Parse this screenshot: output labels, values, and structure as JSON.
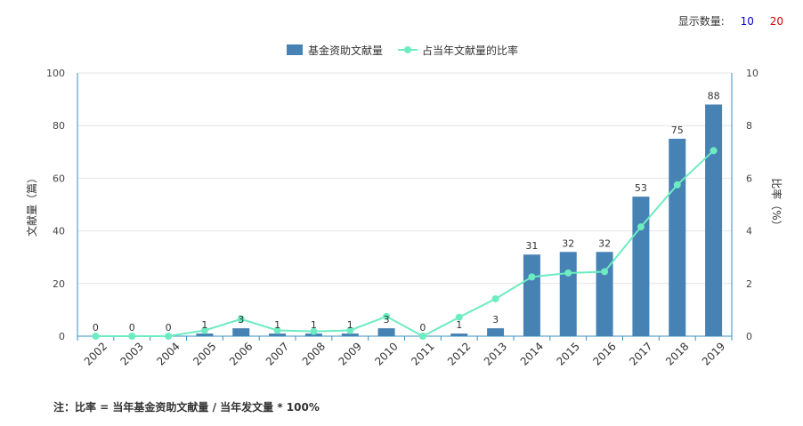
{
  "display_control": {
    "label": "显示数量:",
    "options": [
      "10",
      "20"
    ]
  },
  "note": "注：比率 = 当年基金资助文献量 / 当年发文量 * 100%",
  "colors": {
    "bar": "#4682b4",
    "line": "#6cecc0",
    "axis": "#3a8fc0",
    "grid": "#e4e4e4"
  },
  "chart_data": {
    "type": "bar",
    "categories": [
      "2002",
      "2003",
      "2004",
      "2005",
      "2006",
      "2007",
      "2008",
      "2009",
      "2010",
      "2011",
      "2012",
      "2013",
      "2014",
      "2015",
      "2016",
      "2017",
      "2018",
      "2019"
    ],
    "series": [
      {
        "name": "基金资助文献量",
        "type": "bar",
        "axis": "left",
        "values": [
          0,
          0,
          0,
          1,
          3,
          1,
          1,
          1,
          3,
          0,
          1,
          3,
          31,
          32,
          32,
          53,
          75,
          88
        ]
      },
      {
        "name": "占当年文献量的比率",
        "type": "line",
        "axis": "right",
        "values": [
          0,
          0,
          0,
          0.22,
          0.65,
          0.22,
          0.18,
          0.22,
          0.75,
          0,
          0.72,
          1.42,
          2.25,
          2.4,
          2.45,
          4.15,
          5.75,
          7.05
        ]
      }
    ],
    "ylabel": "文献量（篇）",
    "y2label": "比率（%）",
    "ylim": [
      0,
      100
    ],
    "y2lim": [
      0,
      10
    ],
    "yticks": [
      "0",
      "20",
      "40",
      "60",
      "80",
      "100"
    ],
    "y2ticks": [
      "0",
      "2",
      "4",
      "6",
      "8",
      "10"
    ],
    "grid": true,
    "legend_position": "top-center"
  }
}
